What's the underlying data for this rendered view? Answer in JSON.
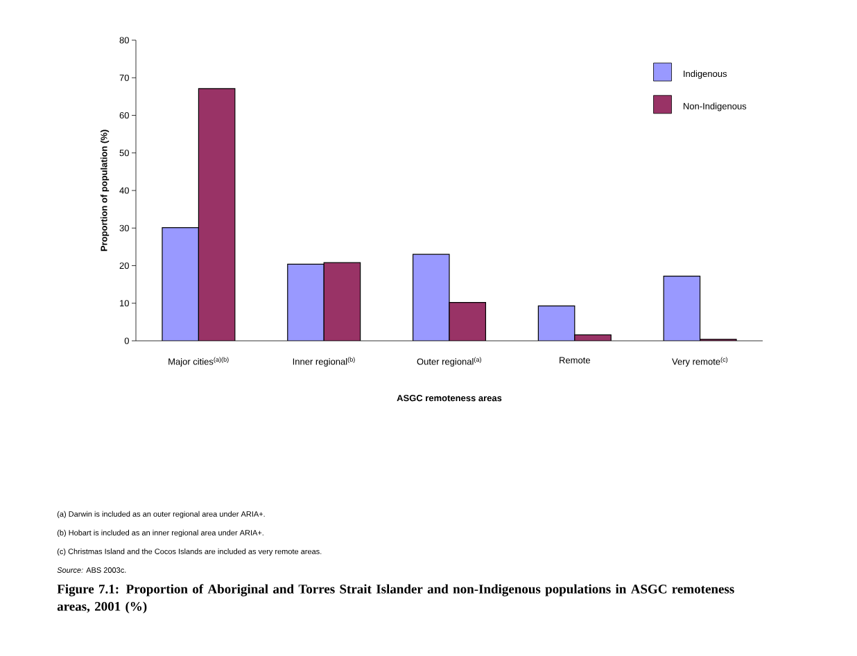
{
  "chart_data": {
    "type": "bar",
    "title": "Figure 7.1: Proportion of Aboriginal and Torres Strait Islander and non-Indigenous populations in ASGC remoteness areas, 2001 (%)",
    "xlabel": "ASGC remoteness areas",
    "ylabel": "Proportion of population (%)",
    "categories": [
      "Major cities$^{(a)(b)}$",
      "Inner regional$^{(b)}$",
      "Outer regional$^{(a)}$",
      "Remote",
      "Very remote$^{(c)}$"
    ],
    "series": [
      {
        "name": "Indigenous",
        "color": "#9999ff",
        "values": [
          30.1,
          20.4,
          23.0,
          9.3,
          17.2
        ]
      },
      {
        "name": "Non-Indigenous",
        "color": "#993366",
        "values": [
          67.1,
          20.8,
          10.2,
          1.6,
          0.4
        ]
      }
    ],
    "ylim": [
      0,
      80
    ],
    "yticks": [
      0,
      10,
      20,
      30,
      40,
      50,
      60,
      70,
      80
    ],
    "legend": "top right",
    "grid": false,
    "annotations": [
      "(a)     Darwin is included as an outer regional area under ARIA+.",
      "(b)     Hobart is included as an inner regional area under ARIA+.",
      "(c)     Christmas Island and the Cocos Islands are included as very remote areas.",
      "*Source:* ABS 2003c."
    ]
  }
}
